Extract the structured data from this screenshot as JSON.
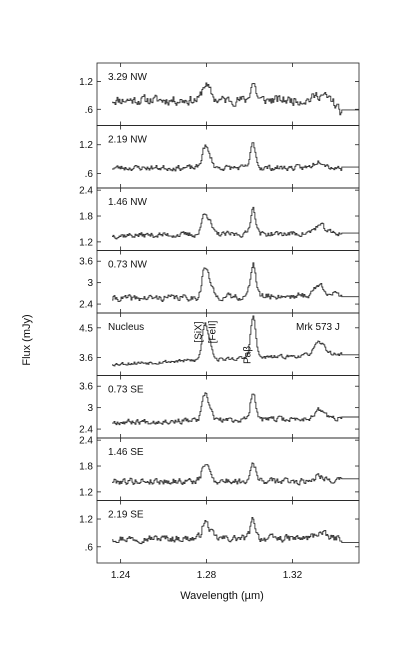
{
  "chart_data": {
    "type": "line",
    "xlabel": "Wavelength (µm)",
    "ylabel": "Flux (mJy)",
    "xlim": [
      1.229,
      1.351
    ],
    "x_ticks": [
      1.24,
      1.28,
      1.32
    ],
    "x_tick_labels": [
      "1.24",
      "1.28",
      "1.32"
    ],
    "grid": false,
    "corner_label": "Mrk 573 J",
    "line_labels": [
      {
        "text": "[SiX]",
        "x": 1.279
      },
      {
        "text": "[FeII]",
        "x": 1.281
      },
      {
        "text": "Paβ",
        "x": 1.301
      }
    ],
    "panels": [
      {
        "name": "3.29 NW",
        "ylim": [
          0.25,
          1.6
        ],
        "ticks": [
          0.6,
          1.2
        ],
        "tick_labels": [
          ".6",
          "1.2"
        ],
        "base": 0.8,
        "amp": 0.38,
        "noise": 0.16,
        "slope": 0.0,
        "seed": 11,
        "end_drop": true
      },
      {
        "name": "2.19 NW",
        "ylim": [
          0.3,
          1.6
        ],
        "ticks": [
          0.6,
          1.2
        ],
        "tick_labels": [
          ".6",
          "1.2"
        ],
        "base": 0.72,
        "amp": 0.5,
        "noise": 0.09,
        "slope": 0.0,
        "seed": 23
      },
      {
        "name": "1.46 NW",
        "ylim": [
          1.0,
          2.45
        ],
        "ticks": [
          1.2,
          1.8,
          2.4
        ],
        "tick_labels": [
          "1.2",
          "1.8",
          "2.4"
        ],
        "base": 1.35,
        "amp": 0.6,
        "noise": 0.1,
        "slope": 0.05,
        "seed": 37
      },
      {
        "name": "0.73 NW",
        "ylim": [
          2.15,
          3.9
        ],
        "ticks": [
          2.4,
          3.0,
          3.6
        ],
        "tick_labels": [
          "2.4",
          "3",
          "3.6"
        ],
        "base": 2.55,
        "amp": 0.95,
        "noise": 0.14,
        "slope": 0.1,
        "seed": 41
      },
      {
        "name": "Nucleus",
        "ylim": [
          3.05,
          4.95
        ],
        "ticks": [
          3.6,
          4.5
        ],
        "tick_labels": [
          "3.6",
          "4.5"
        ],
        "base": 3.4,
        "amp": 1.25,
        "noise": 0.09,
        "slope": 0.3,
        "seed": 53,
        "nucleus": true
      },
      {
        "name": "0.73 SE",
        "ylim": [
          2.15,
          3.9
        ],
        "ticks": [
          2.4,
          3.0,
          3.6
        ],
        "tick_labels": [
          "2.4",
          "3",
          "3.6"
        ],
        "base": 2.6,
        "amp": 0.8,
        "noise": 0.12,
        "slope": 0.1,
        "seed": 67
      },
      {
        "name": "1.46 SE",
        "ylim": [
          1.0,
          2.45
        ],
        "ticks": [
          1.2,
          1.8,
          2.4
        ],
        "tick_labels": [
          "1.2",
          "1.8",
          "2.4"
        ],
        "base": 1.45,
        "amp": 0.45,
        "noise": 0.12,
        "slope": 0.0,
        "seed": 79
      },
      {
        "name": "2.19 SE",
        "ylim": [
          0.25,
          1.6
        ],
        "ticks": [
          0.6,
          1.2
        ],
        "tick_labels": [
          ".6",
          "1.2"
        ],
        "base": 0.78,
        "amp": 0.4,
        "noise": 0.12,
        "slope": 0.0,
        "seed": 97
      }
    ],
    "lines": [
      {
        "x": 1.279,
        "strength": 0.85,
        "width": 0.0013
      },
      {
        "x": 1.2815,
        "strength": 0.35,
        "width": 0.0012
      },
      {
        "x": 1.3015,
        "strength": 1.0,
        "width": 0.0012
      },
      {
        "x": 1.3325,
        "strength": 0.3,
        "width": 0.0025
      }
    ]
  }
}
